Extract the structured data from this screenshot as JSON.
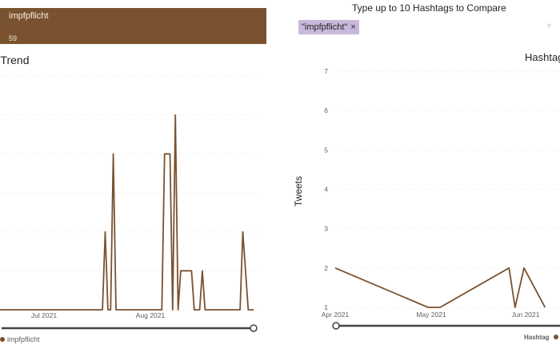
{
  "tile": {
    "label": "impfpflicht",
    "count": "59",
    "color": "#7a5230"
  },
  "left_chart": {
    "title_partial": "gs Trend",
    "legend_label": "impfpflicht",
    "x_tick_labels": [
      "Jul 2021",
      "Aug 2021"
    ]
  },
  "right_panel": {
    "heading": "Type up to 10 Hashtags to Compare",
    "chip_label": "\"impfpflicht\"",
    "chip_close": "×",
    "filter_icon": "filter-icon",
    "title_partial": "Hashtag",
    "y_axis_label": "Tweets",
    "legend_title": "Hashtag"
  },
  "chart_data": [
    {
      "type": "line",
      "title": "",
      "xlabel": "",
      "ylabel": "",
      "x_ticks": [
        "Jul 2021",
        "Aug 2021"
      ],
      "series": [
        {
          "name": "impfpflicht",
          "color": "#7a5230",
          "values": [
            1,
            1,
            1,
            1,
            1,
            1,
            1,
            1,
            1,
            1,
            1,
            1,
            1,
            1,
            1,
            1,
            1,
            1,
            1,
            1,
            1,
            1,
            1,
            1,
            1,
            1,
            1,
            1,
            1,
            1,
            1,
            1,
            1,
            1,
            1,
            1,
            1,
            1,
            1,
            3,
            1,
            1,
            5,
            1,
            1,
            1,
            1,
            1,
            1,
            1,
            1,
            1,
            1,
            1,
            1,
            1,
            1,
            1,
            1,
            1,
            1,
            5,
            5,
            5,
            1,
            6,
            1,
            2,
            2,
            2,
            2,
            2,
            1,
            1,
            1,
            2,
            1,
            1,
            1,
            1,
            1,
            1,
            1,
            1,
            1,
            1,
            1,
            1,
            1,
            1,
            3,
            2,
            1,
            1,
            1
          ]
        }
      ]
    },
    {
      "type": "line",
      "title": "Hashtag",
      "xlabel": "",
      "ylabel": "Tweets",
      "ylim": [
        1,
        7
      ],
      "y_ticks": [
        1,
        2,
        3,
        4,
        5,
        6,
        7
      ],
      "x_ticks": [
        "Apr 2021",
        "May 2021",
        "Jun 2021"
      ],
      "series": [
        {
          "name": "impfpflicht",
          "color": "#7a5230",
          "points": [
            {
              "x": "2021-04-01",
              "y": 2
            },
            {
              "x": "2021-05-02",
              "y": 1
            },
            {
              "x": "2021-05-06",
              "y": 1
            },
            {
              "x": "2021-05-29",
              "y": 2
            },
            {
              "x": "2021-05-31",
              "y": 1
            },
            {
              "x": "2021-06-03",
              "y": 2
            },
            {
              "x": "2021-06-10",
              "y": 1
            }
          ]
        }
      ]
    }
  ]
}
